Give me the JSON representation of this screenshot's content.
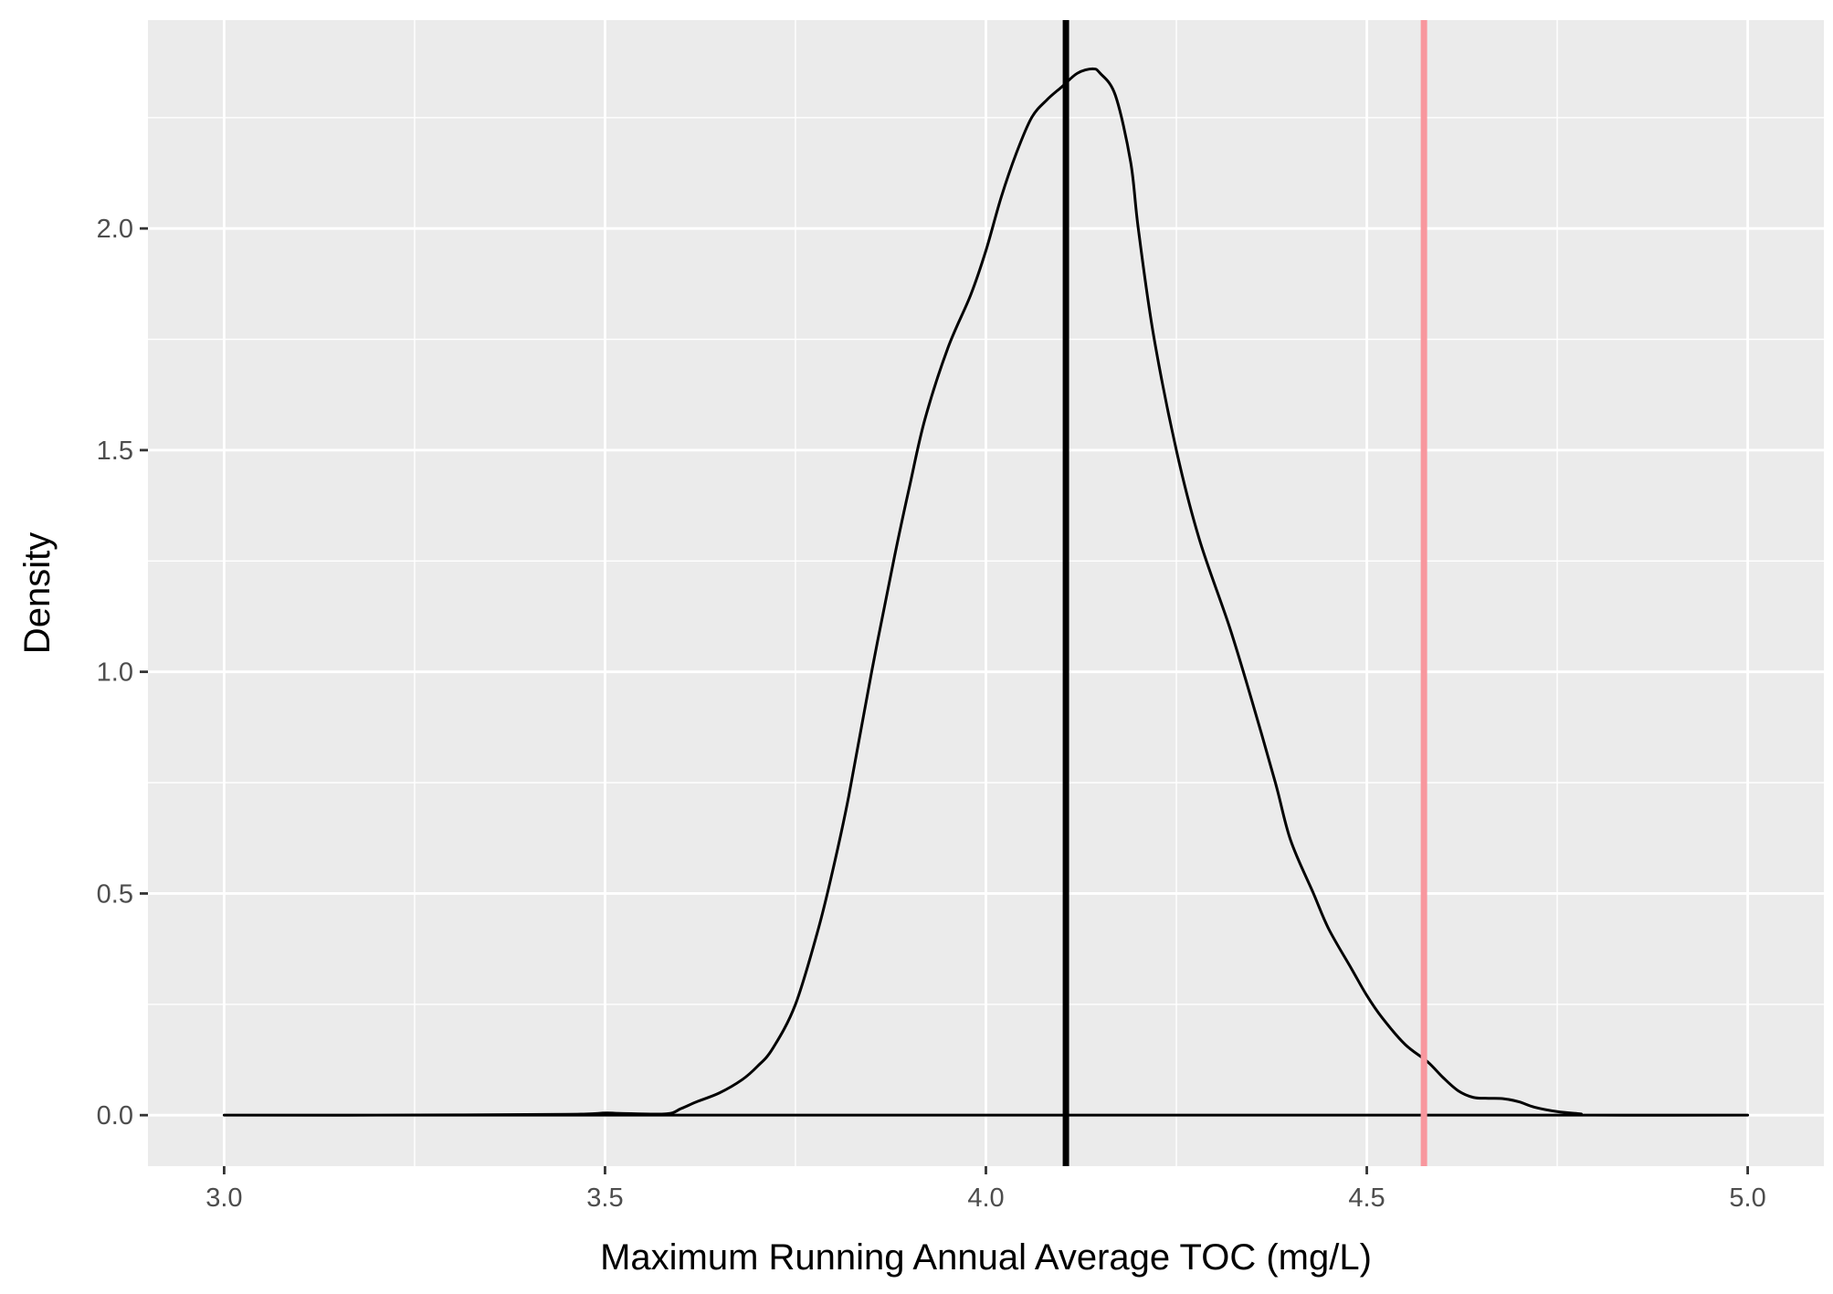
{
  "chart_data": {
    "type": "line",
    "title": "",
    "xlabel": "Maximum Running Annual Average TOC (mg/L)",
    "ylabel": "Density",
    "xlim": [
      2.9,
      5.1
    ],
    "ylim": [
      -0.115,
      2.47
    ],
    "x_ticks": [
      3.0,
      3.5,
      4.0,
      4.5,
      5.0
    ],
    "x_tick_labels": [
      "3.0",
      "3.5",
      "4.0",
      "4.5",
      "5.0"
    ],
    "y_ticks": [
      0.0,
      0.5,
      1.0,
      1.5,
      2.0
    ],
    "y_tick_labels": [
      "0.0",
      "0.5",
      "1.0",
      "1.5",
      "2.0"
    ],
    "grid": true,
    "legend": "none",
    "background_color": "#ebebeb",
    "grid_color": "#ffffff",
    "series": [
      {
        "line_color": "#000000",
        "x": [
          3.0,
          3.2,
          3.45,
          3.5,
          3.52,
          3.58,
          3.6,
          3.62,
          3.65,
          3.68,
          3.7,
          3.72,
          3.75,
          3.78,
          3.8,
          3.82,
          3.85,
          3.88,
          3.9,
          3.92,
          3.95,
          3.98,
          4.0,
          4.02,
          4.04,
          4.06,
          4.08,
          4.1,
          4.12,
          4.14,
          4.15,
          4.17,
          4.19,
          4.2,
          4.22,
          4.25,
          4.28,
          4.32,
          4.35,
          4.38,
          4.4,
          4.43,
          4.45,
          4.48,
          4.5,
          4.52,
          4.55,
          4.58,
          4.6,
          4.62,
          4.64,
          4.66,
          4.68,
          4.7,
          4.72,
          4.75,
          4.78,
          4.8,
          5.0
        ],
        "y": [
          0.0,
          0.0,
          0.002,
          0.005,
          0.004,
          0.003,
          0.015,
          0.03,
          0.05,
          0.08,
          0.11,
          0.15,
          0.25,
          0.42,
          0.56,
          0.72,
          1.0,
          1.26,
          1.42,
          1.57,
          1.73,
          1.85,
          1.95,
          2.07,
          2.17,
          2.25,
          2.29,
          2.32,
          2.35,
          2.36,
          2.35,
          2.3,
          2.15,
          2.0,
          1.76,
          1.5,
          1.3,
          1.1,
          0.93,
          0.75,
          0.62,
          0.5,
          0.42,
          0.33,
          0.27,
          0.22,
          0.16,
          0.12,
          0.085,
          0.055,
          0.04,
          0.038,
          0.037,
          0.03,
          0.018,
          0.008,
          0.003,
          0.0,
          0.0
        ]
      }
    ],
    "vertical_lines": [
      {
        "x": 4.105,
        "color": "#000000"
      },
      {
        "x": 4.575,
        "color": "#f8979e"
      }
    ]
  }
}
